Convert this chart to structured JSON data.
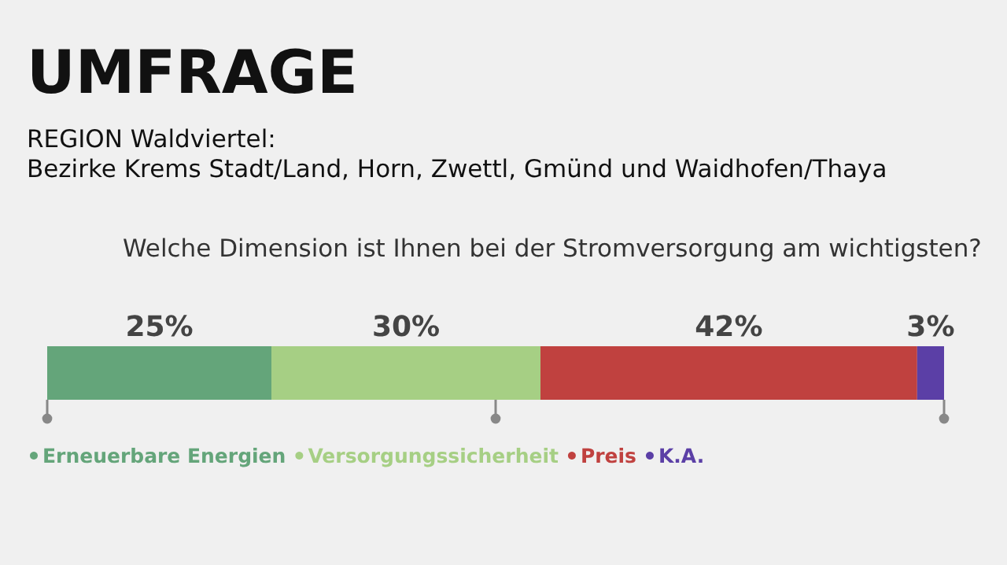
{
  "chart_data": {
    "type": "bar",
    "title": "UMFRAGE",
    "subtitle": "REGION Waldviertel:\nBezirke Krems Stadt/Land, Horn, Zwettl, Gmünd und Waidhofen/Thaya",
    "annotations": [
      "Welche Dimension ist Ihnen bei der Stromversorgung am wichtigsten?"
    ],
    "categories": [
      null
    ],
    "orientation": "horizontal",
    "stacked": true,
    "series": [
      {
        "name": "Erneuerbare Energien",
        "color": "#64a57a",
        "values": [
          25
        ],
        "value_labels": [
          "25%"
        ]
      },
      {
        "name": "Versorgungssicherheit",
        "color": "#a6cf84",
        "values": [
          30
        ],
        "value_labels": [
          "30%"
        ]
      },
      {
        "name": "Preis",
        "color": "#c0413f",
        "values": [
          42
        ],
        "value_labels": [
          "42%"
        ]
      },
      {
        "name": "K.A.",
        "color": "#5b3fa6",
        "values": [
          3
        ],
        "value_labels": [
          "3%"
        ]
      }
    ],
    "legend": "bottom left"
  }
}
